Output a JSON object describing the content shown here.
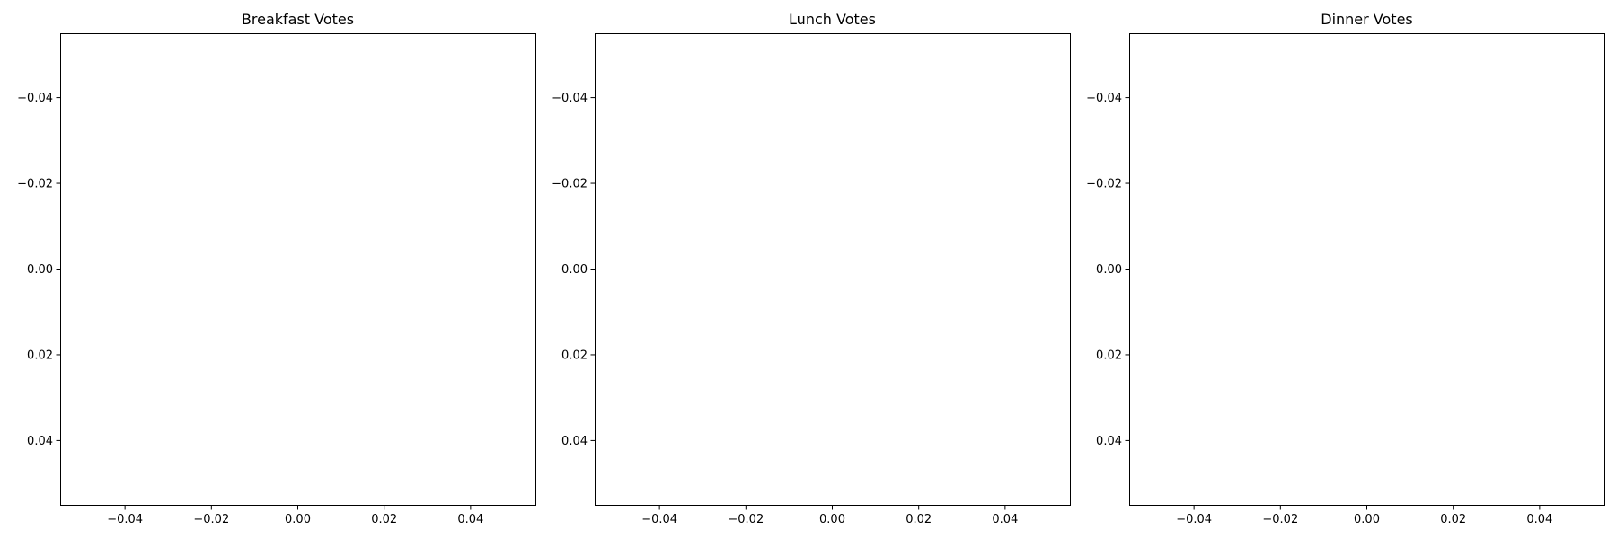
{
  "chart_data": [
    {
      "type": "pie",
      "title": "Breakfast Votes",
      "categories": [],
      "values": [],
      "xlim": [
        -0.055,
        0.055
      ],
      "ylim": [
        -0.055,
        0.055
      ],
      "y_inverted": true,
      "xticks": [
        -0.04,
        -0.02,
        0.0,
        0.02,
        0.04
      ],
      "yticks": [
        -0.04,
        -0.02,
        0.0,
        0.02,
        0.04
      ],
      "xtick_labels": [
        "−0.04",
        "−0.02",
        "0.00",
        "0.02",
        "0.04"
      ],
      "ytick_labels": [
        "−0.04",
        "−0.02",
        "0.00",
        "0.02",
        "0.04"
      ]
    },
    {
      "type": "pie",
      "title": "Lunch Votes",
      "categories": [],
      "values": [],
      "xlim": [
        -0.055,
        0.055
      ],
      "ylim": [
        -0.055,
        0.055
      ],
      "y_inverted": true,
      "xticks": [
        -0.04,
        -0.02,
        0.0,
        0.02,
        0.04
      ],
      "yticks": [
        -0.04,
        -0.02,
        0.0,
        0.02,
        0.04
      ],
      "xtick_labels": [
        "−0.04",
        "−0.02",
        "0.00",
        "0.02",
        "0.04"
      ],
      "ytick_labels": [
        "−0.04",
        "−0.02",
        "0.00",
        "0.02",
        "0.04"
      ]
    },
    {
      "type": "pie",
      "title": "Dinner Votes",
      "categories": [],
      "values": [],
      "xlim": [
        -0.055,
        0.055
      ],
      "ylim": [
        -0.055,
        0.055
      ],
      "y_inverted": true,
      "xticks": [
        -0.04,
        -0.02,
        0.0,
        0.02,
        0.04
      ],
      "yticks": [
        -0.04,
        -0.02,
        0.0,
        0.02,
        0.04
      ],
      "xtick_labels": [
        "−0.04",
        "−0.02",
        "0.00",
        "0.02",
        "0.04"
      ],
      "ytick_labels": [
        "−0.04",
        "−0.02",
        "0.00",
        "0.02",
        "0.04"
      ]
    }
  ]
}
